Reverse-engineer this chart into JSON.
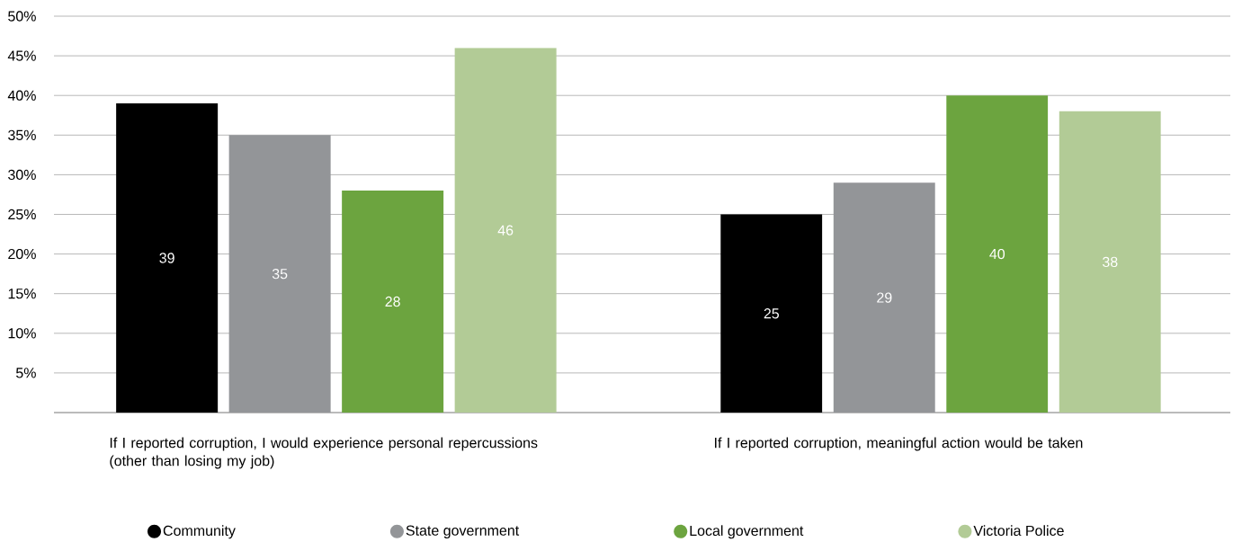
{
  "chart_data": {
    "type": "bar",
    "categories": [
      "If I reported corruption, I would experience personal repercussions (other than losing my job)",
      "If I reported corruption, meaningful action would be taken"
    ],
    "series": [
      {
        "name": "Community",
        "color": "#000000",
        "values": [
          39,
          25
        ]
      },
      {
        "name": "State government",
        "color": "#939598",
        "values": [
          35,
          29
        ]
      },
      {
        "name": "Local government",
        "color": "#6ca43f",
        "values": [
          28,
          40
        ]
      },
      {
        "name": "Victoria Police",
        "color": "#b2cb96",
        "values": [
          46,
          38
        ]
      }
    ],
    "ylim": [
      0,
      50
    ],
    "yticks": [
      {
        "value": 0,
        "label": null
      },
      {
        "value": 5,
        "label": "5%"
      },
      {
        "value": 10,
        "label": "10%"
      },
      {
        "value": 15,
        "label": "15%"
      },
      {
        "value": 20,
        "label": "20%"
      },
      {
        "value": 25,
        "label": "25%"
      },
      {
        "value": 30,
        "label": "30%"
      },
      {
        "value": 35,
        "label": "35%"
      },
      {
        "value": 40,
        "label": "40%"
      },
      {
        "value": 45,
        "label": "45%"
      },
      {
        "value": 50,
        "label": "50%"
      }
    ],
    "grid": "y",
    "legend": "bottom",
    "data_labels": true
  }
}
